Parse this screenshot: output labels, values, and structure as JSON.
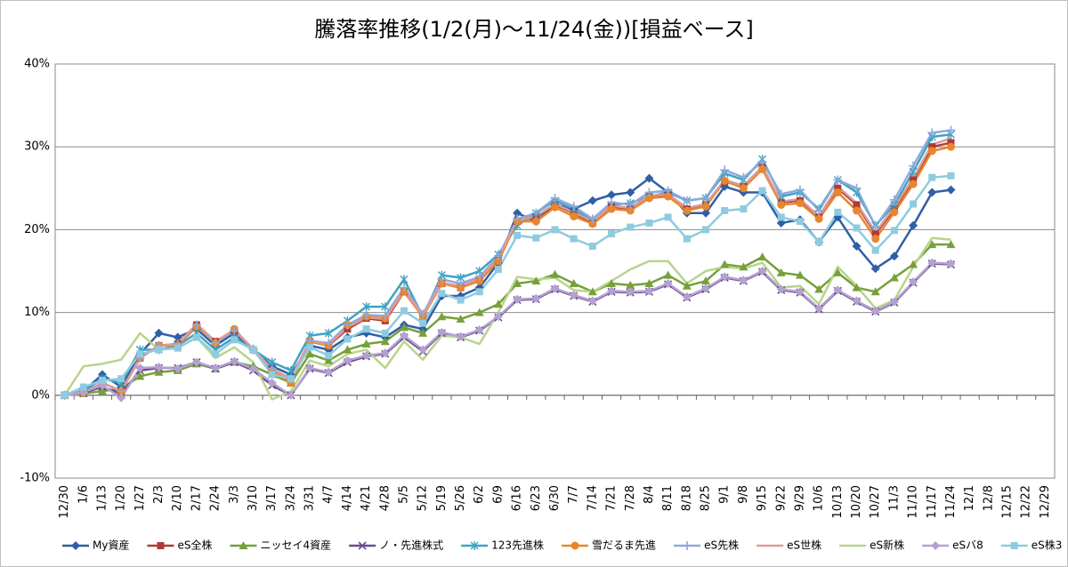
{
  "chart_data": {
    "type": "line",
    "title": "騰落率推移(1/2(月)～11/24(金))[損益ベース]",
    "categories": [
      "12/30",
      "1/6",
      "1/13",
      "1/20",
      "1/27",
      "2/3",
      "2/10",
      "2/17",
      "2/24",
      "3/3",
      "3/10",
      "3/17",
      "3/24",
      "3/31",
      "4/7",
      "4/14",
      "4/21",
      "4/28",
      "5/5",
      "5/12",
      "5/19",
      "5/26",
      "6/2",
      "6/9",
      "6/16",
      "6/23",
      "6/30",
      "7/7",
      "7/14",
      "7/21",
      "7/28",
      "8/4",
      "8/11",
      "8/18",
      "8/25",
      "9/1",
      "9/8",
      "9/15",
      "9/22",
      "9/29",
      "10/6",
      "10/13",
      "10/20",
      "10/27",
      "11/3",
      "11/10",
      "11/17",
      "11/24",
      "12/1",
      "12/8",
      "12/15",
      "12/22",
      "12/29"
    ],
    "ylim": [
      -10,
      40
    ],
    "yticks": [
      {
        "value": -10,
        "label": "-10%"
      },
      {
        "value": 0,
        "label": "0%"
      },
      {
        "value": 10,
        "label": "10%"
      },
      {
        "value": 20,
        "label": "20%"
      },
      {
        "value": 30,
        "label": "30%"
      },
      {
        "value": 40,
        "label": "40%"
      }
    ],
    "grid": true,
    "legend": "bottom",
    "series": [
      {
        "name": "My資産",
        "color": "#2f5fa6",
        "marker": "diamond",
        "values": [
          0,
          0.5,
          2.5,
          1,
          5,
          7.5,
          7,
          8,
          6,
          7.5,
          5.5,
          3.5,
          2.5,
          6,
          5.5,
          7,
          7.5,
          7,
          8.5,
          8,
          12,
          12,
          13,
          16,
          22,
          21,
          23,
          22.5,
          23.5,
          24.2,
          24.5,
          26.2,
          24.5,
          22,
          22,
          25.2,
          24.5,
          24.5,
          20.8,
          21.2,
          18.5,
          21.5,
          18,
          15.3,
          16.8,
          20.5,
          24.5,
          24.8,
          null,
          null,
          null,
          null,
          null
        ]
      },
      {
        "name": "eS全株",
        "color": "#b03a36",
        "marker": "square",
        "values": [
          0,
          0.3,
          1.5,
          0.5,
          4.5,
          6,
          6.2,
          8.5,
          6.5,
          7.8,
          5.5,
          3,
          2,
          6.5,
          6,
          8,
          9.3,
          9,
          12.5,
          9.5,
          13.5,
          13,
          14,
          16.5,
          21,
          21.5,
          23,
          22,
          20.8,
          22.8,
          22.5,
          24,
          24.2,
          22.5,
          23,
          25.8,
          25.2,
          27.5,
          23.3,
          23.5,
          21.5,
          25,
          23,
          19.5,
          22.5,
          26,
          30,
          30.5,
          null,
          null,
          null,
          null,
          null
        ]
      },
      {
        "name": "ニッセイ4資産",
        "color": "#77a03a",
        "marker": "triangle",
        "values": [
          0,
          0.2,
          0.5,
          0.8,
          2.3,
          2.8,
          3,
          3.8,
          3.2,
          4,
          3.5,
          2.5,
          1.5,
          5,
          4.2,
          5.5,
          6.2,
          6.5,
          8.2,
          7.5,
          9.5,
          9.2,
          10,
          11,
          13.5,
          13.8,
          14.6,
          13.5,
          12.5,
          13.5,
          13.3,
          13.5,
          14.5,
          13.2,
          13.8,
          15.8,
          15.5,
          16.7,
          14.8,
          14.5,
          12.8,
          14.8,
          13,
          12.5,
          14.2,
          15.8,
          18.2,
          18.2,
          null,
          null,
          null,
          null,
          null
        ]
      },
      {
        "name": "ノ・先進株式",
        "color": "#6b4a90",
        "marker": "x",
        "values": [
          0,
          0.3,
          1,
          0.2,
          3,
          3.3,
          3.3,
          4,
          3.2,
          4,
          3,
          1.2,
          0,
          3.2,
          2.7,
          4,
          4.7,
          5,
          7,
          5.3,
          7.5,
          7,
          7.8,
          9.4,
          11.5,
          11.6,
          12.8,
          12,
          11.3,
          12.5,
          12.4,
          12.5,
          13.4,
          11.8,
          12.8,
          14.2,
          13.8,
          14.9,
          12.7,
          12.4,
          10.4,
          12.6,
          11.3,
          10.1,
          11.2,
          13.6,
          15.9,
          15.8,
          null,
          null,
          null,
          null,
          null
        ]
      },
      {
        "name": "123先進株",
        "color": "#3fa3c2",
        "marker": "asterisk",
        "values": [
          0,
          0.5,
          2,
          1.5,
          5.5,
          5.5,
          6,
          7.5,
          5.5,
          7,
          5.5,
          4,
          3,
          7.2,
          7.5,
          9,
          10.7,
          10.7,
          14,
          9.5,
          14.5,
          14.2,
          15,
          17,
          20.5,
          22,
          23.5,
          22.5,
          21,
          23,
          23.2,
          24,
          24.5,
          23.5,
          23.8,
          26.8,
          26,
          28.5,
          24,
          24.5,
          22.5,
          26,
          24.5,
          20.5,
          23,
          27,
          31.2,
          31.5,
          null,
          null,
          null,
          null,
          null
        ]
      },
      {
        "name": "雪だるま先進",
        "color": "#e8862e",
        "marker": "circle",
        "values": [
          0,
          0.3,
          1.5,
          0.5,
          4.5,
          6,
          6,
          8.3,
          6.3,
          8,
          5.5,
          3,
          1.5,
          6.5,
          6,
          8.5,
          9.5,
          9.3,
          12.5,
          9.5,
          13.5,
          13,
          13.8,
          16.2,
          21,
          21,
          22.7,
          21.6,
          20.7,
          22.5,
          22.3,
          23.8,
          24,
          22.3,
          22.8,
          25.9,
          25,
          27.3,
          23,
          23.2,
          21.3,
          24.5,
          22.3,
          18.9,
          22.1,
          25.5,
          29.5,
          30,
          null,
          null,
          null,
          null,
          null
        ]
      },
      {
        "name": "eS先株",
        "color": "#8eaadb",
        "marker": "plus",
        "values": [
          0,
          0.3,
          1.5,
          0.5,
          4.5,
          6,
          6.2,
          8.5,
          6.3,
          7.8,
          5.6,
          3.2,
          2,
          6.6,
          6.3,
          8.5,
          9.7,
          9.6,
          13,
          9.8,
          14,
          13.5,
          14.3,
          16.8,
          21.3,
          22,
          23.8,
          22.8,
          21.3,
          23.3,
          23,
          24.5,
          24.7,
          23.5,
          23.8,
          27.2,
          26.3,
          28.2,
          24.3,
          24.8,
          22.3,
          26,
          25,
          20.4,
          23.6,
          27.7,
          31.7,
          32,
          null,
          null,
          null,
          null,
          null
        ]
      },
      {
        "name": "eS世株",
        "color": "#de9a98",
        "marker": "none",
        "values": [
          0,
          0.3,
          1.5,
          0.5,
          4.6,
          6,
          6.2,
          8.6,
          6.5,
          7.9,
          5.6,
          3.1,
          2,
          6.6,
          6.1,
          8.2,
          9.4,
          9.2,
          12.7,
          9.6,
          13.6,
          13.2,
          14.1,
          16.6,
          21.1,
          21.6,
          23.1,
          22.1,
          21,
          22.9,
          22.6,
          24.1,
          24.3,
          22.6,
          23.1,
          26,
          25.3,
          27.6,
          23.4,
          23.7,
          21.6,
          25.2,
          23.2,
          19.7,
          22.7,
          26.2,
          30.3,
          31,
          null,
          null,
          null,
          null,
          null
        ]
      },
      {
        "name": "eS新株",
        "color": "#b9d48c",
        "marker": "none",
        "values": [
          0,
          3.5,
          3.8,
          4.3,
          7.5,
          5.5,
          5.7,
          7,
          4.5,
          5.8,
          4,
          -0.5,
          0.5,
          4.2,
          3.5,
          5,
          5.5,
          3.3,
          6.5,
          4.3,
          7.2,
          7,
          6.2,
          10,
          14.3,
          14,
          14.2,
          12.7,
          12.5,
          13.8,
          15.2,
          16.2,
          16.2,
          13.5,
          15,
          15.5,
          15.3,
          16,
          13,
          13.2,
          11,
          15.5,
          13.2,
          10.5,
          11.5,
          15.5,
          19,
          18.8,
          null,
          null,
          null,
          null,
          null
        ]
      },
      {
        "name": "eSバ8",
        "color": "#b3a2cf",
        "marker": "diamond",
        "values": [
          0,
          0.4,
          1.2,
          -0.3,
          3.3,
          3.4,
          3.2,
          4,
          3.3,
          4.1,
          3.2,
          1.5,
          0,
          3.3,
          2.8,
          4.2,
          4.8,
          5.1,
          7.2,
          5.5,
          7.6,
          7.1,
          7.9,
          9.5,
          11.6,
          11.7,
          12.9,
          12.1,
          11.4,
          12.6,
          12.5,
          12.6,
          13.5,
          11.9,
          12.9,
          14.3,
          13.9,
          15,
          12.8,
          12.5,
          10.5,
          12.7,
          11.4,
          10.2,
          11.3,
          13.7,
          16,
          15.9,
          null,
          null,
          null,
          null,
          null
        ]
      },
      {
        "name": "eS株3",
        "color": "#8fcbe0",
        "marker": "square",
        "values": [
          0,
          1,
          1.8,
          2,
          5,
          5.5,
          5.7,
          7,
          5,
          6.7,
          5.5,
          2.5,
          2,
          5.8,
          4.8,
          6.8,
          8,
          7.5,
          10.2,
          8.7,
          12.3,
          11.5,
          12.5,
          15.2,
          19.3,
          19,
          20,
          18.9,
          18,
          19.5,
          20.3,
          20.8,
          21.5,
          18.9,
          20,
          22.3,
          22.5,
          24.7,
          21.5,
          21,
          18.5,
          22.1,
          20.2,
          17.5,
          19.9,
          23.1,
          26.3,
          26.5,
          null,
          null,
          null,
          null,
          null
        ]
      }
    ]
  }
}
